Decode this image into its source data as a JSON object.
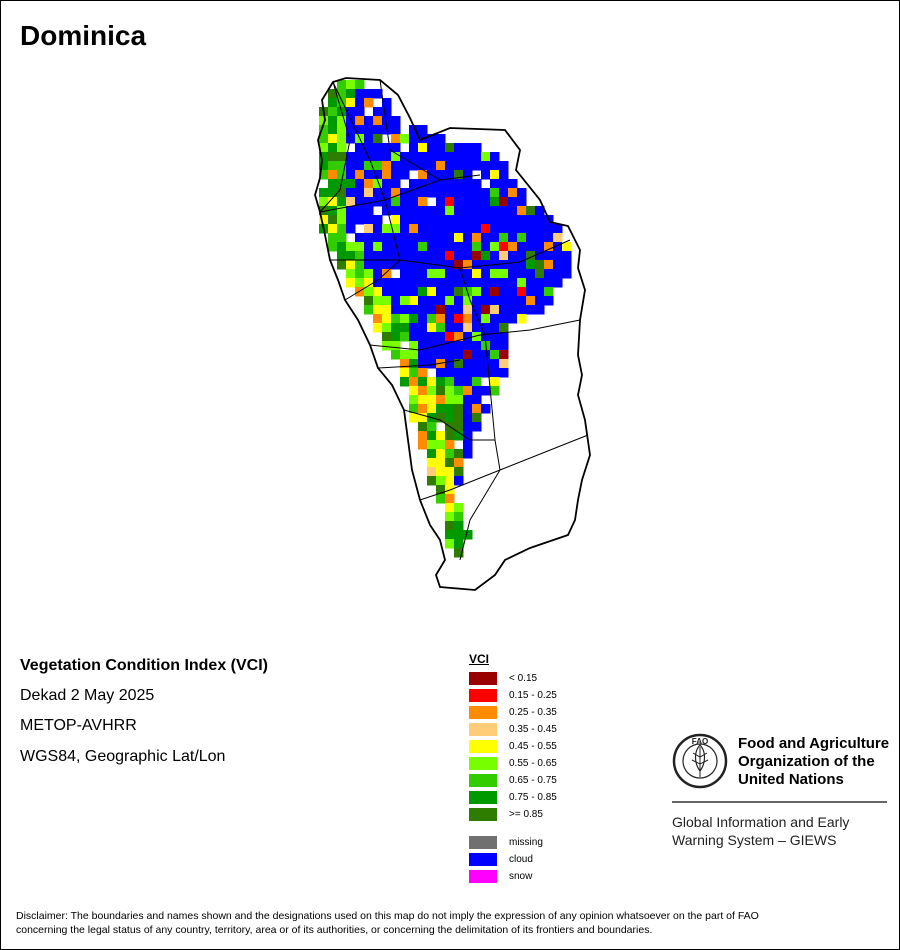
{
  "map": {
    "title": "Dominica",
    "product": "Vegetation Condition Index (VCI)",
    "period": "Dekad 2 May 2025",
    "sensor": "METOP-AVHRR",
    "projection": "WGS84, Geographic Lat/Lon"
  },
  "legend": {
    "title": "VCI",
    "classes": [
      {
        "label": "< 0.15",
        "color": "#990000"
      },
      {
        "label": "0.15 - 0.25",
        "color": "#ff0000"
      },
      {
        "label": "0.25 - 0.35",
        "color": "#ff8c00"
      },
      {
        "label": "0.35 - 0.45",
        "color": "#ffcc77"
      },
      {
        "label": "0.45 - 0.55",
        "color": "#ffff00"
      },
      {
        "label": "0.55 - 0.65",
        "color": "#77ff00"
      },
      {
        "label": "0.65 - 0.75",
        "color": "#33cc00"
      },
      {
        "label": "0.75 - 0.85",
        "color": "#009900"
      },
      {
        "label": ">= 0.85",
        "color": "#2e7d00"
      }
    ],
    "special": [
      {
        "label": "missing",
        "color": "#707070"
      },
      {
        "label": "cloud",
        "color": "#0000ff"
      },
      {
        "label": "snow",
        "color": "#ff00ff"
      }
    ]
  },
  "branding": {
    "logo_text": "FAO",
    "org_line1": "Food and Agriculture",
    "org_line2": "Organization of the",
    "org_line3": "United Nations",
    "system_line1": "Global Information and Early",
    "system_line2": "Warning System – GIEWS"
  },
  "disclaimer": {
    "line1": "Disclaimer: The boundaries and names shown and the designations used on this map do not imply the expression of any opinion whatsoever on the part of FAO",
    "line2": "concerning the legal status of any country, territory, area or of its authorities, or concerning the delimitation of its frontiers and boundaries."
  }
}
